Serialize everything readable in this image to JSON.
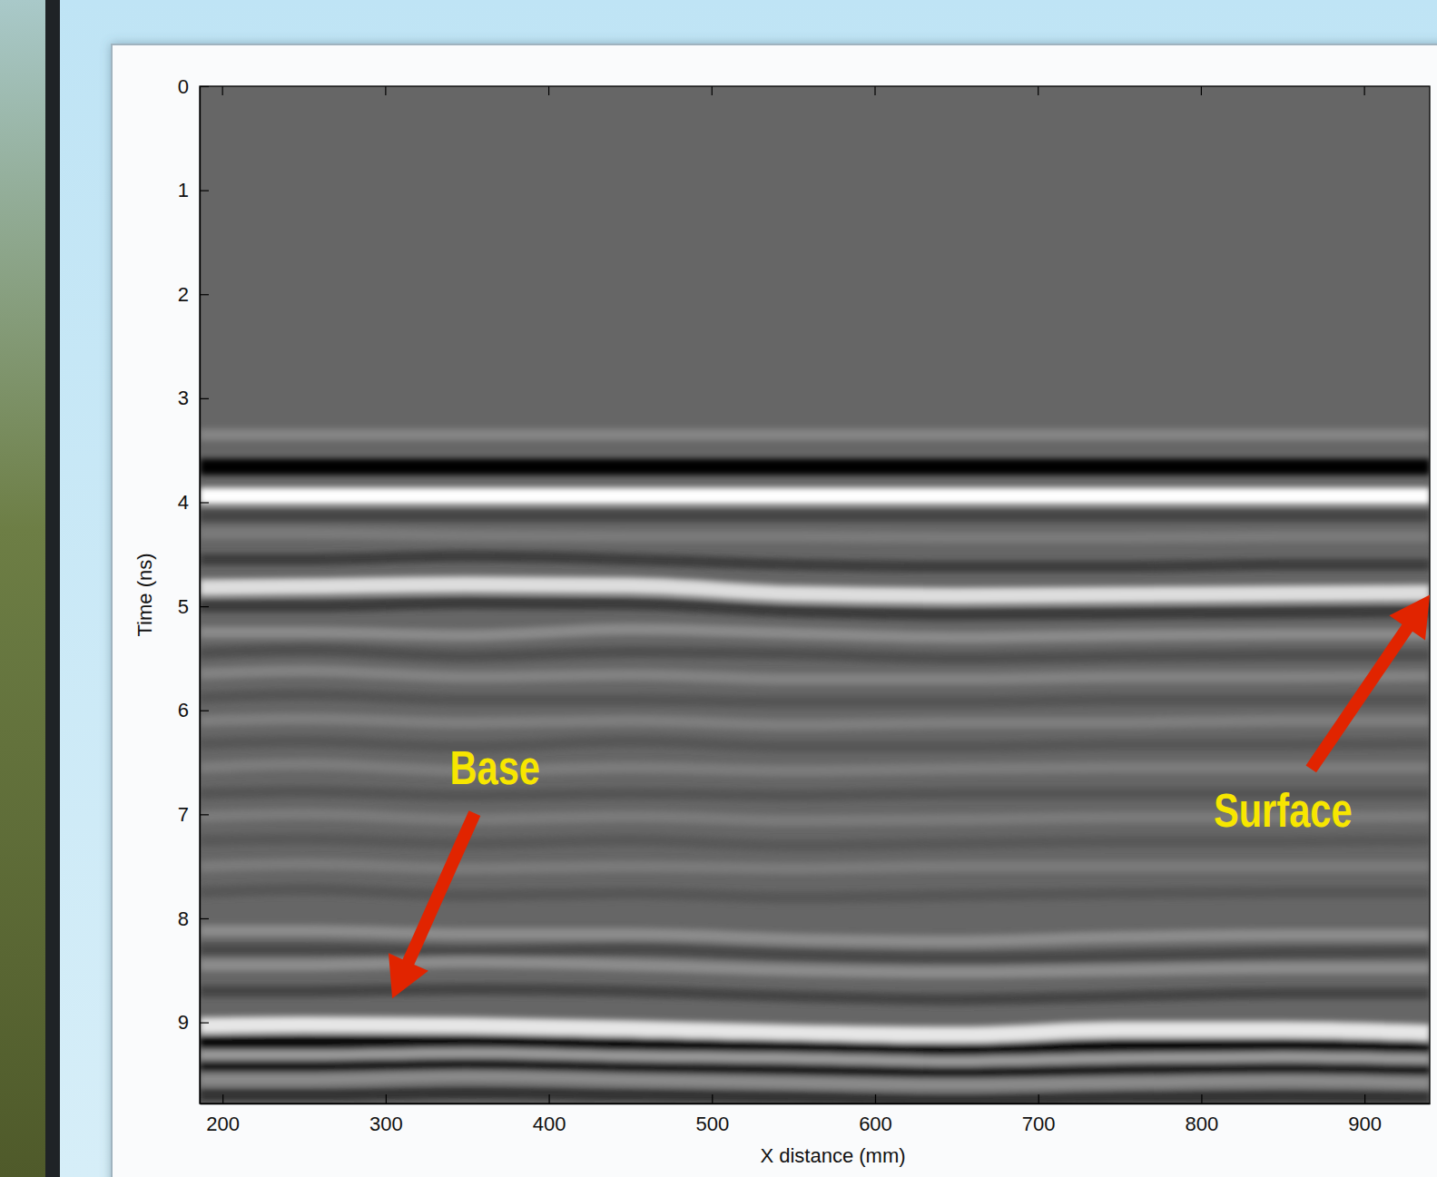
{
  "chart_data": {
    "type": "line",
    "x_label": "X distance (mm)",
    "y_label": "Time (ns)",
    "xlim": [
      186,
      940
    ],
    "ylim": [
      0,
      9.78
    ],
    "xticks": [
      200,
      300,
      400,
      500,
      600,
      700,
      800,
      900
    ],
    "yticks": [
      0,
      1,
      2,
      3,
      4,
      5,
      6,
      7,
      8,
      9
    ],
    "grid": false,
    "x": [
      186,
      250,
      350,
      450,
      550,
      650,
      750,
      850,
      940
    ],
    "series": [
      {
        "color": "#858585",
        "line_style": "solid",
        "values": [
          3.35,
          3.35,
          3.35,
          3.35,
          3.35,
          3.35,
          3.35,
          3.35,
          3.35
        ]
      },
      {
        "color": "#000000",
        "line_style": "bold",
        "values": [
          3.66,
          3.66,
          3.66,
          3.66,
          3.66,
          3.66,
          3.66,
          3.66,
          3.66
        ]
      },
      {
        "color": "#ffffff",
        "line_style": "bold",
        "values": [
          3.94,
          3.94,
          3.94,
          3.94,
          3.94,
          3.94,
          3.94,
          3.94,
          3.94
        ]
      },
      {
        "color": "#444444",
        "line_style": "solid",
        "values": [
          4.13,
          4.13,
          4.13,
          4.13,
          4.13,
          4.13,
          4.13,
          4.13,
          4.13
        ]
      },
      {
        "color": "#7a7a7a",
        "line_style": "solid",
        "values": [
          4.3,
          4.3,
          4.32,
          4.33,
          4.33,
          4.34,
          4.34,
          4.33,
          4.33
        ]
      },
      {
        "color": "#3e3e3e",
        "line_style": "solid",
        "values": [
          4.55,
          4.55,
          4.52,
          4.55,
          4.6,
          4.62,
          4.62,
          4.6,
          4.6
        ]
      },
      {
        "color": "#dddddd",
        "line_style": "bold",
        "values": [
          4.82,
          4.81,
          4.79,
          4.8,
          4.88,
          4.9,
          4.89,
          4.88,
          4.87
        ]
      },
      {
        "color": "#3a3a3a",
        "line_style": "solid",
        "values": [
          5.0,
          5.0,
          4.97,
          4.98,
          5.05,
          5.08,
          5.07,
          5.06,
          5.05
        ]
      },
      {
        "color": "#8a8a8a",
        "line_style": "solid",
        "values": [
          5.25,
          5.25,
          5.28,
          5.22,
          5.26,
          5.3,
          5.28,
          5.27,
          5.27
        ]
      },
      {
        "color": "#505050",
        "line_style": "solid",
        "values": [
          5.45,
          5.42,
          5.48,
          5.44,
          5.46,
          5.5,
          5.48,
          5.47,
          5.47
        ]
      },
      {
        "color": "#828282",
        "line_style": "solid",
        "values": [
          5.65,
          5.62,
          5.68,
          5.66,
          5.7,
          5.7,
          5.68,
          5.68,
          5.67
        ]
      },
      {
        "color": "#555555",
        "line_style": "solid",
        "values": [
          5.88,
          5.85,
          5.9,
          5.9,
          5.92,
          5.92,
          5.9,
          5.9,
          5.9
        ]
      },
      {
        "color": "#7e7e7e",
        "line_style": "solid",
        "values": [
          6.1,
          6.08,
          6.12,
          6.1,
          6.14,
          6.12,
          6.12,
          6.1,
          6.1
        ]
      },
      {
        "color": "#575757",
        "line_style": "solid",
        "values": [
          6.32,
          6.3,
          6.35,
          6.3,
          6.35,
          6.35,
          6.33,
          6.33,
          6.32
        ]
      },
      {
        "color": "#7c7c7c",
        "line_style": "solid",
        "values": [
          6.55,
          6.52,
          6.58,
          6.55,
          6.58,
          6.56,
          6.55,
          6.55,
          6.55
        ]
      },
      {
        "color": "#555555",
        "line_style": "solid",
        "values": [
          6.8,
          6.78,
          6.82,
          6.8,
          6.82,
          6.8,
          6.8,
          6.8,
          6.8
        ]
      },
      {
        "color": "#7a7a7a",
        "line_style": "solid",
        "values": [
          7.02,
          7.0,
          7.05,
          7.02,
          7.06,
          7.05,
          7.03,
          7.03,
          7.02
        ]
      },
      {
        "color": "#585858",
        "line_style": "solid",
        "values": [
          7.25,
          7.24,
          7.28,
          7.25,
          7.3,
          7.28,
          7.26,
          7.26,
          7.25
        ]
      },
      {
        "color": "#7a7a7a",
        "line_style": "solid",
        "values": [
          7.5,
          7.48,
          7.52,
          7.5,
          7.52,
          7.5,
          7.5,
          7.5,
          7.5
        ]
      },
      {
        "color": "#565656",
        "line_style": "solid",
        "values": [
          7.75,
          7.72,
          7.78,
          7.76,
          7.8,
          7.78,
          7.76,
          7.75,
          7.75
        ]
      },
      {
        "color": "#8c8c8c",
        "line_style": "solid",
        "values": [
          8.12,
          8.12,
          8.15,
          8.15,
          8.2,
          8.22,
          8.18,
          8.16,
          8.16
        ]
      },
      {
        "color": "#4a4a4a",
        "line_style": "solid",
        "values": [
          8.3,
          8.3,
          8.32,
          8.3,
          8.35,
          8.38,
          8.36,
          8.33,
          8.32
        ]
      },
      {
        "color": "#8c8c8c",
        "line_style": "solid",
        "values": [
          8.45,
          8.45,
          8.42,
          8.45,
          8.5,
          8.52,
          8.5,
          8.48,
          8.48
        ]
      },
      {
        "color": "#444444",
        "line_style": "solid",
        "values": [
          8.7,
          8.7,
          8.68,
          8.7,
          8.75,
          8.78,
          8.75,
          8.72,
          8.72
        ]
      },
      {
        "color": "#e6e6e6",
        "line_style": "bold",
        "values": [
          9.03,
          9.02,
          9.03,
          9.06,
          9.1,
          9.12,
          9.07,
          9.07,
          9.1
        ]
      },
      {
        "color": "#111111",
        "line_style": "bold",
        "values": [
          9.2,
          9.2,
          9.2,
          9.22,
          9.25,
          9.28,
          9.24,
          9.23,
          9.26
        ]
      },
      {
        "color": "#9a9a9a",
        "line_style": "solid",
        "values": [
          9.32,
          9.32,
          9.3,
          9.33,
          9.35,
          9.38,
          9.35,
          9.34,
          9.36
        ]
      },
      {
        "color": "#1a1a1a",
        "line_style": "solid",
        "values": [
          9.42,
          9.42,
          9.4,
          9.43,
          9.45,
          9.48,
          9.45,
          9.44,
          9.46
        ]
      },
      {
        "color": "#8a8a8a",
        "line_style": "solid",
        "values": [
          9.55,
          9.55,
          9.52,
          9.55,
          9.58,
          9.6,
          9.58,
          9.56,
          9.58
        ]
      },
      {
        "color": "#333333",
        "line_style": "solid",
        "values": [
          9.7,
          9.7,
          9.68,
          9.7,
          9.72,
          9.75,
          9.72,
          9.71,
          9.72
        ]
      }
    ],
    "annotations": [
      {
        "text": "Base",
        "x": 367,
        "y": 6.55,
        "arrow_x": 304,
        "arrow_y": 8.77
      },
      {
        "text": "Surface",
        "x": 850,
        "y": 6.96,
        "arrow_x": 940,
        "arrow_y": 4.89
      }
    ]
  }
}
